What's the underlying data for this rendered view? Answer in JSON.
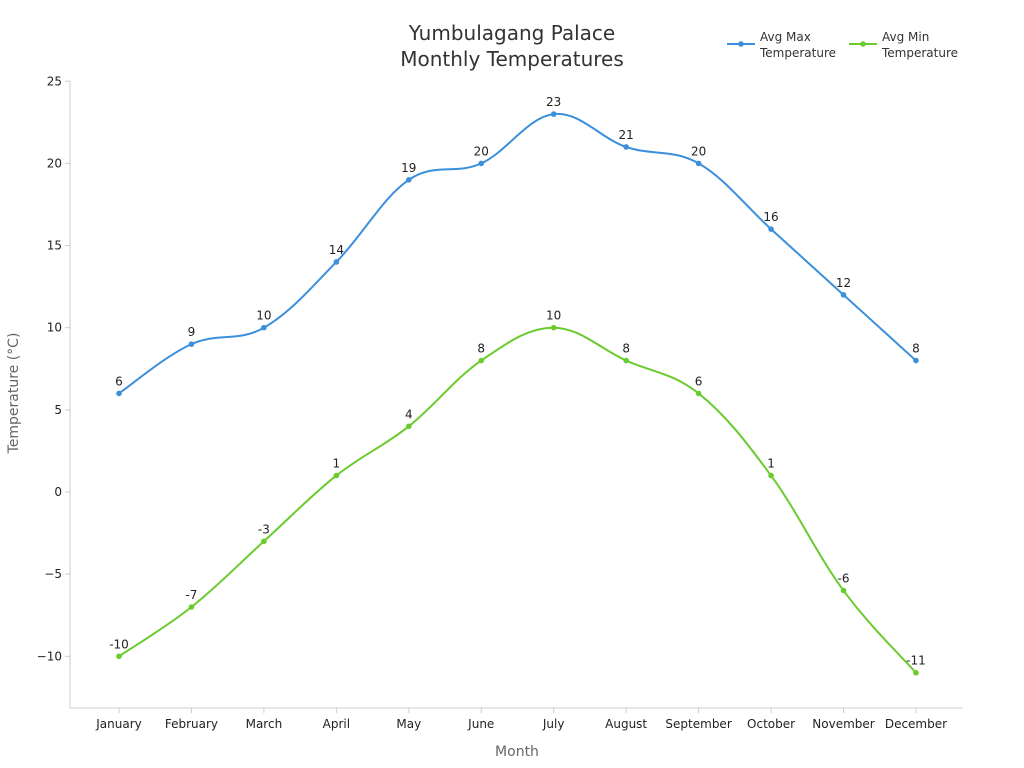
{
  "chart_data": {
    "type": "line",
    "title": [
      "Yumbulagang Palace",
      "Monthly Temperatures"
    ],
    "xlabel": "Month",
    "ylabel": "Temperature (°C)",
    "categories": [
      "January",
      "February",
      "March",
      "April",
      "May",
      "June",
      "July",
      "August",
      "September",
      "October",
      "November",
      "December"
    ],
    "ylim": [
      -13,
      25
    ],
    "yticks": [
      {
        "value": 25,
        "label": "25"
      },
      {
        "value": 20,
        "label": "20"
      },
      {
        "value": 15,
        "label": "15"
      },
      {
        "value": 10,
        "label": "10"
      },
      {
        "value": 5,
        "label": "5"
      },
      {
        "value": 0,
        "label": "0"
      },
      {
        "value": -5,
        "label": "−5"
      },
      {
        "value": -10,
        "label": "−10"
      }
    ],
    "grid": false,
    "legend_position": "top-right",
    "series": [
      {
        "name": "Avg Max Temperature",
        "legend_lines": [
          "Avg Max",
          "Temperature"
        ],
        "color": "#3b8fdc",
        "values": [
          6,
          9,
          10,
          14,
          19,
          20,
          23,
          21,
          20,
          16,
          12,
          8
        ],
        "labels": [
          "6",
          "9",
          "10",
          "14",
          "19",
          "20",
          "23",
          "21",
          "20",
          "16",
          "12",
          "8"
        ]
      },
      {
        "name": "Avg Min Temperature",
        "legend_lines": [
          "Avg Min",
          "Temperature"
        ],
        "color": "#6acb2e",
        "values": [
          -10,
          -7,
          -3,
          1,
          4,
          8,
          10,
          8,
          6,
          1,
          -6,
          -11
        ],
        "labels": [
          "-10",
          "-7",
          "-3",
          "1",
          "4",
          "8",
          "10",
          "8",
          "6",
          "1",
          "-6",
          "-11"
        ]
      }
    ]
  }
}
